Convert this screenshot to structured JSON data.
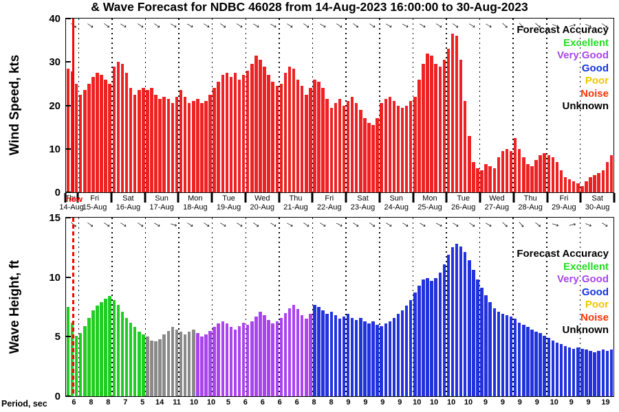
{
  "title": "& Wave Forecast for NDBC 46028 from 14-Aug-2023 16:00:00 to 30-Aug-2023",
  "now_label": "now",
  "now_color": "#ff0000",
  "legend": {
    "title": "Forecast Accuracy",
    "title_color": "#000000",
    "entries": [
      {
        "label": "Excellent",
        "color": "#22dd22"
      },
      {
        "label": "Very Good",
        "color": "#aa44ee"
      },
      {
        "label": "Good",
        "color": "#1133dd"
      },
      {
        "label": "Poor",
        "color": "#f5c400"
      },
      {
        "label": "Noise",
        "color": "#ff3300"
      },
      {
        "label": "Unknown",
        "color": "#000000"
      }
    ]
  },
  "axis": {
    "days": [
      {
        "dow": "Thu",
        "date": "14-Aug"
      },
      {
        "dow": "Fri",
        "date": "15-Aug"
      },
      {
        "dow": "Sat",
        "date": "16-Aug"
      },
      {
        "dow": "Sun",
        "date": "17-Aug"
      },
      {
        "dow": "Mon",
        "date": "18-Aug"
      },
      {
        "dow": "Tue",
        "date": "19-Aug"
      },
      {
        "dow": "Wed",
        "date": "20-Aug"
      },
      {
        "dow": "Thu",
        "date": "21-Aug"
      },
      {
        "dow": "Fri",
        "date": "22-Aug"
      },
      {
        "dow": "Sat",
        "date": "23-Aug"
      },
      {
        "dow": "Sun",
        "date": "24-Aug"
      },
      {
        "dow": "Mon",
        "date": "25-Aug"
      },
      {
        "dow": "Tue",
        "date": "26-Aug"
      },
      {
        "dow": "Wed",
        "date": "27-Aug"
      },
      {
        "dow": "Thu",
        "date": "28-Aug"
      },
      {
        "dow": "Fri",
        "date": "29-Aug"
      },
      {
        "dow": "Sat",
        "date": "30-Aug"
      }
    ]
  },
  "grid": {
    "first_day_bars": 3,
    "bars_per_day": 8
  },
  "period": {
    "label": "Period, sec",
    "values": [
      6,
      8,
      8,
      7,
      5,
      14,
      11,
      10,
      10,
      5,
      6,
      6,
      6,
      6,
      8,
      8,
      9,
      9,
      9,
      9,
      10,
      10,
      10,
      10,
      9,
      9,
      9,
      9,
      10,
      9,
      9,
      19
    ]
  },
  "chart_data": [
    {
      "type": "bar",
      "name": "wind-speed",
      "ylabel": "Wind Speed, kts",
      "units": "kts",
      "ylim": [
        0,
        40
      ],
      "yticks": [
        0,
        10,
        20,
        30,
        40
      ],
      "bar_color": "#ee2222",
      "x_start": "14-Aug-2023 16:00",
      "x_step_hours": 3,
      "values": [
        28.5,
        27.8,
        25.0,
        22.5,
        23.5,
        25.0,
        26.5,
        27.5,
        27.0,
        26.0,
        25.0,
        29.0,
        30.0,
        29.5,
        27.5,
        24.0,
        22.5,
        23.5,
        24.0,
        23.5,
        24.0,
        22.5,
        21.5,
        22.0,
        21.5,
        20.5,
        22.0,
        23.5,
        22.0,
        20.5,
        21.0,
        21.5,
        20.5,
        21.0,
        22.5,
        24.0,
        25.5,
        27.0,
        27.5,
        26.5,
        27.5,
        26.0,
        27.0,
        28.0,
        29.5,
        31.5,
        30.5,
        29.0,
        27.0,
        25.5,
        24.5,
        25.0,
        27.5,
        29.0,
        28.5,
        26.0,
        24.5,
        22.5,
        24.0,
        26.0,
        25.5,
        24.0,
        21.5,
        19.5,
        20.5,
        21.5,
        20.0,
        21.0,
        22.0,
        20.5,
        19.0,
        17.0,
        16.0,
        15.5,
        17.0,
        20.5,
        21.5,
        22.0,
        21.0,
        20.0,
        19.5,
        20.0,
        21.0,
        22.0,
        26.0,
        29.5,
        32.0,
        31.5,
        29.5,
        29.0,
        30.5,
        33.0,
        36.5,
        36.0,
        30.5,
        21.0,
        13.0,
        7.0,
        5.5,
        5.0,
        6.5,
        6.0,
        5.5,
        8.0,
        9.5,
        10.0,
        9.5,
        12.5,
        10.0,
        8.0,
        6.5,
        6.0,
        7.5,
        8.5,
        9.0,
        8.5,
        8.0,
        7.0,
        5.0,
        3.5,
        3.0,
        2.5,
        2.0,
        1.5,
        2.5,
        3.5,
        4.0,
        4.5,
        5.0,
        7.0,
        8.5
      ],
      "arrows_deg": [
        38,
        34,
        36,
        30,
        33,
        35,
        31,
        28,
        32,
        35,
        33,
        30,
        28,
        32,
        35,
        30,
        33,
        36,
        32,
        30,
        28,
        30,
        33,
        35,
        31,
        29,
        44,
        50,
        40,
        20,
        -15,
        25,
        35
      ]
    },
    {
      "type": "bar",
      "name": "wave-height",
      "ylabel": "Wave Height, ft",
      "units": "ft",
      "ylim": [
        0,
        15
      ],
      "yticks": [
        0,
        5,
        10,
        15
      ],
      "x_start": "14-Aug-2023 16:00",
      "x_step_hours": 3,
      "values": [
        7.5,
        6.2,
        5.1,
        5.3,
        5.9,
        6.6,
        7.2,
        7.6,
        7.9,
        8.2,
        8.4,
        8.1,
        7.7,
        7.1,
        6.6,
        6.2,
        5.8,
        5.4,
        5.2,
        5.0,
        4.7,
        4.6,
        4.8,
        5.2,
        5.5,
        5.8,
        5.6,
        5.4,
        5.2,
        5.4,
        5.6,
        5.3,
        5.0,
        5.2,
        5.5,
        5.8,
        6.1,
        6.3,
        6.1,
        5.8,
        5.6,
        5.9,
        6.2,
        6.0,
        6.3,
        6.7,
        7.1,
        6.8,
        6.4,
        6.1,
        6.3,
        6.6,
        7.0,
        7.4,
        7.7,
        7.3,
        6.8,
        6.5,
        6.9,
        7.7,
        7.5,
        7.2,
        6.9,
        7.1,
        6.8,
        6.5,
        6.7,
        6.9,
        6.6,
        6.4,
        6.6,
        6.3,
        6.1,
        6.3,
        6.0,
        5.9,
        6.1,
        6.3,
        6.6,
        6.9,
        7.2,
        7.6,
        8.1,
        8.7,
        9.3,
        9.8,
        9.9,
        9.7,
        9.9,
        10.4,
        11.1,
        11.9,
        12.5,
        12.8,
        12.6,
        12.1,
        11.4,
        10.6,
        9.8,
        9.1,
        8.5,
        7.9,
        7.4,
        7.1,
        6.9,
        6.8,
        6.7,
        6.5,
        6.2,
        6.0,
        5.8,
        5.6,
        5.4,
        5.3,
        5.1,
        4.9,
        4.7,
        4.5,
        4.4,
        4.2,
        4.1,
        4.0,
        4.1,
        4.0,
        3.9,
        3.8,
        3.7,
        3.8,
        3.9,
        3.8,
        3.9
      ],
      "segments": [
        {
          "count": 19,
          "color": "#22cc22",
          "quality": "Excellent"
        },
        {
          "count": 12,
          "color": "#8a8a8a",
          "quality": "Unknown"
        },
        {
          "count": 28,
          "color": "#aa44ee",
          "quality": "Very Good"
        },
        {
          "count": 72,
          "color": "#2233dd",
          "quality": "Good"
        }
      ],
      "arrows_deg": [
        40,
        36,
        33,
        31,
        34,
        30,
        18,
        32,
        34,
        31,
        33,
        35,
        31,
        29,
        33,
        31,
        28,
        33,
        35,
        31,
        32,
        30,
        28,
        32,
        34,
        30,
        42,
        48,
        38,
        18,
        -12,
        22,
        33
      ]
    }
  ]
}
